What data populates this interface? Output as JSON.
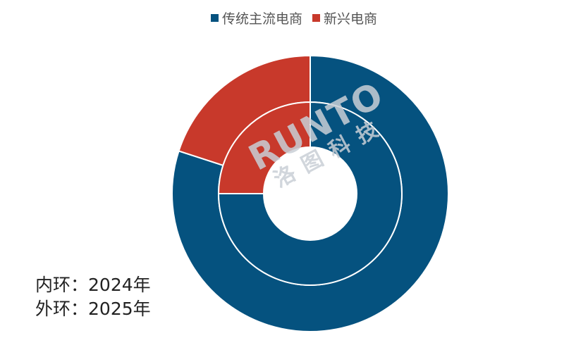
{
  "chart_data": {
    "type": "pie",
    "subtype": "nested-donut",
    "categories": [
      "传统主流电商",
      "新兴电商"
    ],
    "colors": [
      "#05527f",
      "#c8392b"
    ],
    "series": [
      {
        "name": "2024年",
        "ring": "inner",
        "values": [
          75,
          25
        ]
      },
      {
        "name": "2025年",
        "ring": "outer",
        "values": [
          80,
          20
        ]
      }
    ],
    "legend_position": "top-center",
    "ring_notes": [
      {
        "label": "内环：",
        "value": "2024年"
      },
      {
        "label": "外环：",
        "value": "2025年"
      }
    ]
  },
  "watermark": {
    "logo": "RUNTO",
    "text": "洛图科技"
  }
}
